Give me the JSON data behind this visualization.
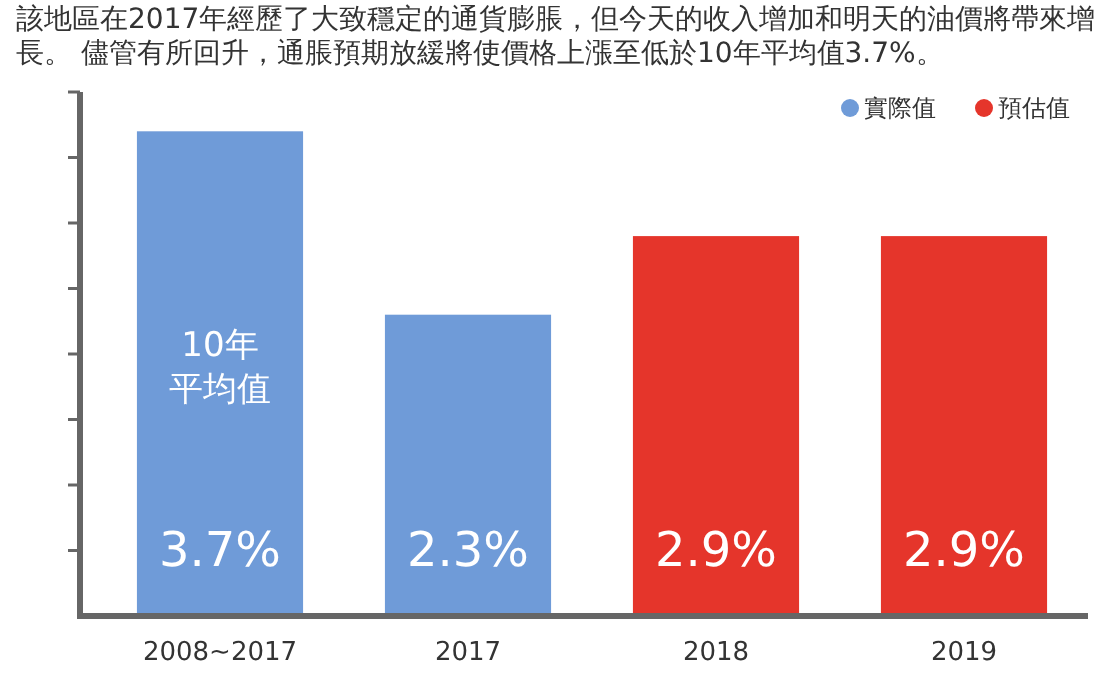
{
  "chart_data": {
    "type": "bar",
    "title": "該地區在2017年經歷了大致穩定的通貨膨脹，但今天的收入增加和明天的油價將帶來增長。 儘管有所回升，通脹預期放緩將使價格上漲至低於10年平均值3.7%。",
    "categories": [
      "2008~2017",
      "2017",
      "2018",
      "2019"
    ],
    "series": [
      {
        "name": "實際值",
        "color": "#6f9bd8",
        "values": [
          3.7,
          2.3,
          null,
          null
        ],
        "value_labels": [
          "3.7%",
          "2.3%",
          null,
          null
        ]
      },
      {
        "name": "預估值",
        "color": "#e5352b",
        "values": [
          null,
          null,
          2.9,
          2.9
        ],
        "value_labels": [
          null,
          null,
          "2.9%",
          "2.9%"
        ]
      }
    ],
    "ylim": [
      0,
      4
    ],
    "yticks": [
      {
        "value": 0.5,
        "label": null
      },
      {
        "value": 1,
        "label": null
      },
      {
        "value": 1.5,
        "label": null
      },
      {
        "value": 2,
        "label": null
      },
      {
        "value": 2.5,
        "label": null
      },
      {
        "value": 3,
        "label": null
      },
      {
        "value": 3.5,
        "label": null
      },
      {
        "value": 4,
        "label": null
      }
    ],
    "tick_labels": "x",
    "legend": "top right",
    "annotations": [
      "10年平均值"
    ]
  }
}
